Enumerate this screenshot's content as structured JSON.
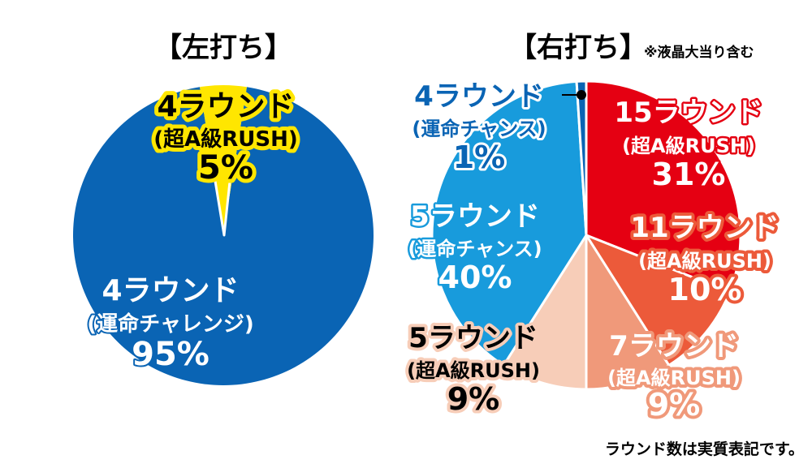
{
  "chart_data": [
    {
      "type": "pie",
      "title": "【左打ち】",
      "slices": [
        {
          "label_line1": "4ラウンド",
          "label_line2": "(運命チャレンジ)",
          "value": 95,
          "value_label": "95%",
          "color": "#0a64b4"
        },
        {
          "label_line1": "4ラウンド",
          "label_line2": "(超A級RUSH)",
          "value": 5,
          "value_label": "5%",
          "color": "#ffe600"
        }
      ]
    },
    {
      "type": "pie",
      "title": "【右打ち】",
      "subtitle": "※液晶大当り含む",
      "slices": [
        {
          "label_line1": "15ラウンド",
          "label_line2": "(超A級RUSH)",
          "value": 31,
          "value_label": "31%",
          "color": "#e50012"
        },
        {
          "label_line1": "11ラウンド",
          "label_line2": "(超A級RUSH)",
          "value": 10,
          "value_label": "10%",
          "color": "#ec5a3a"
        },
        {
          "label_line1": "7ラウンド",
          "label_line2": "(超A級RUSH)",
          "value": 9,
          "value_label": "9%",
          "color": "#f0997a"
        },
        {
          "label_line1": "5ラウンド",
          "label_line2": "(超A級RUSH)",
          "value": 9,
          "value_label": "9%",
          "color": "#f7cdb8"
        },
        {
          "label_line1": "5ラウンド",
          "label_line2": "(運命チャンス)",
          "value": 40,
          "value_label": "40%",
          "color": "#189bdc"
        },
        {
          "label_line1": "4ラウンド",
          "label_line2": "(運命チャンス)",
          "value": 1,
          "value_label": "1%",
          "color": "#0a64b4"
        }
      ]
    }
  ],
  "footnote": "ラウンド数は実質表記です。"
}
